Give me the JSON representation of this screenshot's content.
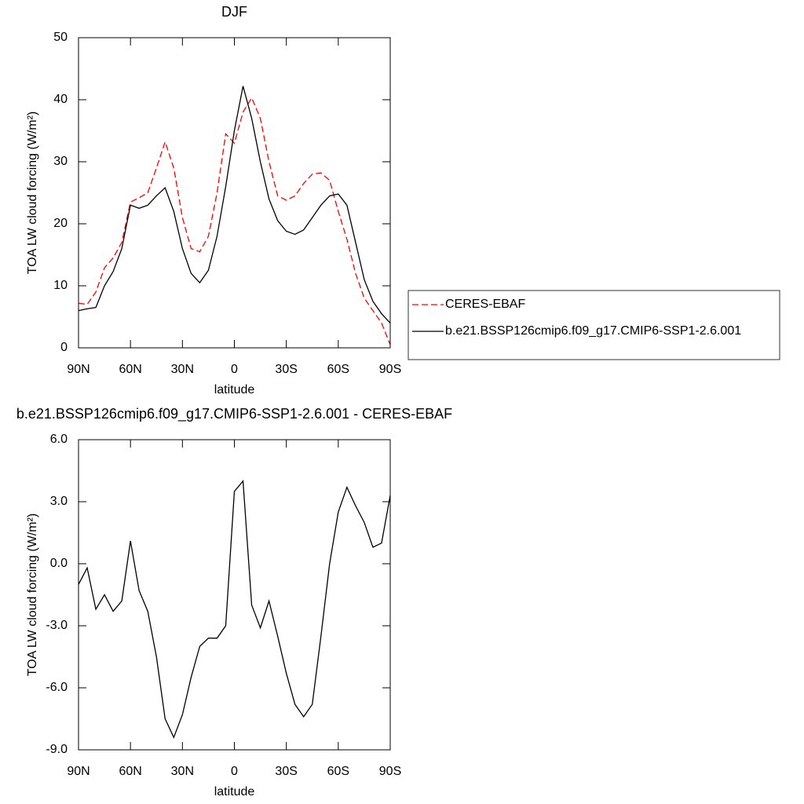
{
  "chart_data": [
    {
      "type": "line",
      "title": "DJF",
      "xlabel": "latitude",
      "ylabel": "TOA LW cloud forcing (W/m²)",
      "x": [
        90,
        85,
        80,
        75,
        70,
        65,
        60,
        55,
        50,
        45,
        40,
        35,
        30,
        25,
        20,
        15,
        10,
        5,
        0,
        -5,
        -10,
        -15,
        -20,
        -25,
        -30,
        -35,
        -40,
        -45,
        -50,
        -55,
        -60,
        -65,
        -70,
        -75,
        -80,
        -85,
        -90
      ],
      "series": [
        {
          "name": "CERES-EBAF",
          "color": "#ff0000",
          "line_style": "dashed",
          "values": [
            7.2,
            7,
            9,
            12.9,
            14.5,
            17,
            23.5,
            24.2,
            25,
            29,
            33.2,
            29,
            21,
            16,
            15.5,
            18,
            25,
            34.5,
            33,
            38,
            40.3,
            37,
            30,
            24.5,
            23.8,
            24.5,
            26.5,
            28,
            28.2,
            27,
            22,
            17.5,
            12,
            8,
            6,
            4,
            0.5
          ]
        },
        {
          "name": "b.e21.BSSP126cmip6.f09_g17.CMIP6-SSP1-2.6.001",
          "color": "#000000",
          "line_style": "solid",
          "values": [
            6.0,
            6.3,
            6.5,
            10,
            12.3,
            16,
            23,
            22.5,
            23,
            24.5,
            25.8,
            22,
            16,
            12,
            10.5,
            12.5,
            18,
            26,
            35,
            42.2,
            37,
            30,
            24,
            20.5,
            18.8,
            18.3,
            19,
            21,
            23,
            24.5,
            24.8,
            23,
            17,
            11,
            7.5,
            5.5,
            4.0
          ]
        }
      ],
      "xlim": [
        90,
        -90
      ],
      "xticks": [
        {
          "value": 90,
          "label": "90N"
        },
        {
          "value": 60,
          "label": "60N"
        },
        {
          "value": 30,
          "label": "30N"
        },
        0,
        {
          "value": -30,
          "label": "30S"
        },
        {
          "value": -60,
          "label": "60S"
        },
        {
          "value": -90,
          "label": "90S"
        }
      ],
      "ylim": [
        0,
        50
      ],
      "yticks": [
        0,
        10,
        20,
        30,
        40,
        50
      ],
      "legend": "right"
    },
    {
      "type": "line",
      "title": "b.e21.BSSP126cmip6.f09_g17.CMIP6-SSP1-2.6.001 - CERES-EBAF",
      "xlabel": "latitude",
      "ylabel": "TOA LW cloud forcing (W/m²)",
      "x": [
        90,
        85,
        80,
        75,
        70,
        65,
        60,
        55,
        50,
        45,
        40,
        35,
        30,
        25,
        20,
        15,
        10,
        5,
        0,
        -5,
        -10,
        -15,
        -20,
        -25,
        -30,
        -35,
        -40,
        -45,
        -50,
        -55,
        -60,
        -65,
        -70,
        -75,
        -80,
        -85,
        -90
      ],
      "values": [
        -1.0,
        -0.2,
        -2.2,
        -1.5,
        -2.3,
        -1.8,
        1.1,
        -1.3,
        -2.3,
        -4.5,
        -7.5,
        -8.4,
        -7.3,
        -5.5,
        -4.0,
        -3.6,
        -3.6,
        -3.0,
        3.5,
        4.0,
        -2.0,
        -3.1,
        -1.8,
        -3.5,
        -5.3,
        -6.8,
        -7.4,
        -6.8,
        -3.5,
        0.0,
        2.5,
        3.7,
        2.8,
        2.0,
        0.8,
        1.0,
        3.3
      ],
      "color": "#000000",
      "xlim": [
        90,
        -90
      ],
      "xticks": [
        {
          "value": 90,
          "label": "90N"
        },
        {
          "value": 60,
          "label": "60N"
        },
        {
          "value": 30,
          "label": "30N"
        },
        0,
        {
          "value": -30,
          "label": "30S"
        },
        {
          "value": -60,
          "label": "60S"
        },
        {
          "value": -90,
          "label": "90S"
        }
      ],
      "ylim": [
        -9,
        6
      ],
      "yticks": [
        {
          "value": -9,
          "label": "-9.0"
        },
        {
          "value": -6,
          "label": "-6.0"
        },
        {
          "value": -3,
          "label": "-3.0"
        },
        {
          "value": 0,
          "label": "0.0"
        },
        {
          "value": 3,
          "label": "3.0"
        },
        {
          "value": 6,
          "label": "6.0"
        }
      ]
    }
  ]
}
